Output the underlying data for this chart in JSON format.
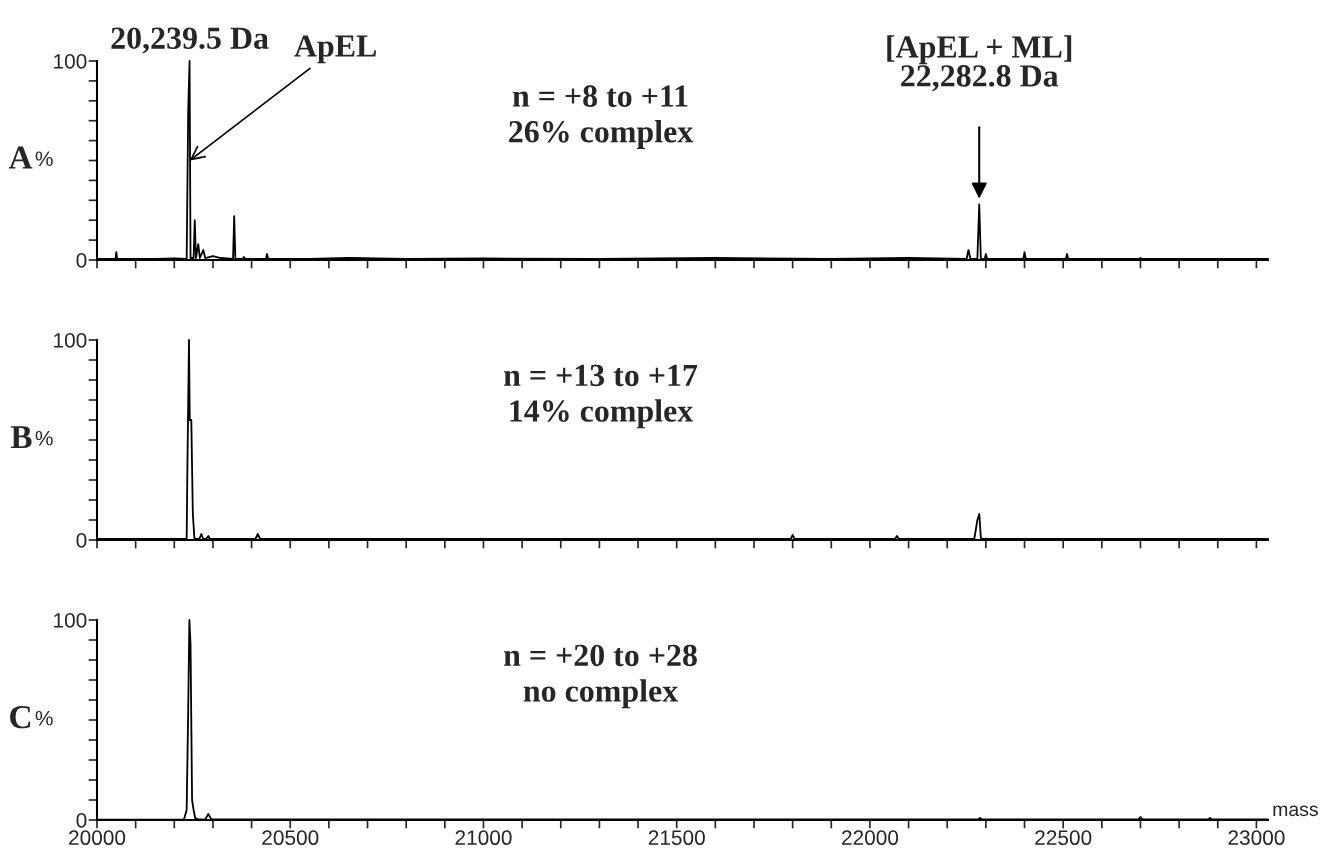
{
  "chart_data": [
    {
      "type": "line",
      "title": "A",
      "ylabel": "%",
      "xlim": [
        20000,
        23030
      ],
      "ylim": [
        0,
        100
      ],
      "tick_labels": "y",
      "legend": false,
      "grid": false,
      "xticks": [
        20000,
        {
          "value": 20100,
          "label": null
        },
        {
          "value": 20200,
          "label": null
        },
        {
          "value": 20300,
          "label": null
        },
        {
          "value": 20400,
          "label": null
        },
        20500,
        {
          "value": 20600,
          "label": null
        },
        {
          "value": 20700,
          "label": null
        },
        {
          "value": 20800,
          "label": null
        },
        {
          "value": 20900,
          "label": null
        },
        21000,
        {
          "value": 21100,
          "label": null
        },
        {
          "value": 21200,
          "label": null
        },
        {
          "value": 21300,
          "label": null
        },
        {
          "value": 21400,
          "label": null
        },
        21500,
        {
          "value": 21600,
          "label": null
        },
        {
          "value": 21700,
          "label": null
        },
        {
          "value": 21800,
          "label": null
        },
        {
          "value": 21900,
          "label": null
        },
        22000,
        {
          "value": 22100,
          "label": null
        },
        {
          "value": 22200,
          "label": null
        },
        {
          "value": 22300,
          "label": null
        },
        {
          "value": 22400,
          "label": null
        },
        22500,
        {
          "value": 22600,
          "label": null
        },
        {
          "value": 22700,
          "label": null
        },
        {
          "value": 22800,
          "label": null
        },
        {
          "value": 22900,
          "label": null
        },
        23000
      ],
      "yticks": [
        0,
        {
          "value": 10,
          "label": null
        },
        {
          "value": 20,
          "label": null
        },
        {
          "value": 30,
          "label": null
        },
        {
          "value": 40,
          "label": null
        },
        {
          "value": 50,
          "label": null
        },
        {
          "value": 60,
          "label": null
        },
        {
          "value": 70,
          "label": null
        },
        {
          "value": 80,
          "label": null
        },
        {
          "value": 90,
          "label": null
        },
        100
      ],
      "series": [
        {
          "color": "#000000",
          "x": [
            20000,
            20048,
            20050,
            20052,
            20150,
            20200,
            20232,
            20236,
            20239.5,
            20242,
            20250,
            20253,
            20256,
            20262,
            20266,
            20275,
            20280,
            20300,
            20320,
            20352,
            20355,
            20358,
            20376,
            20380,
            20384,
            20437,
            20440,
            20443,
            20550,
            20650,
            20800,
            21000,
            21300,
            21600,
            21900,
            22100,
            22250,
            22255,
            22260,
            22278,
            22282.8,
            22287,
            22297,
            22300,
            22303,
            22397,
            22400,
            22403,
            22507,
            22510,
            22513,
            22697,
            22700,
            22703,
            23000,
            23030
          ],
          "values": [
            0.5,
            0.5,
            4,
            0.5,
            0.5,
            0.8,
            0.5,
            75,
            100,
            1,
            1,
            20,
            1,
            8,
            1,
            5,
            1,
            2,
            1,
            0.5,
            22,
            0.5,
            0.5,
            1.5,
            0.5,
            0.5,
            3,
            0.5,
            0.5,
            1,
            0.5,
            0.8,
            0.5,
            1,
            0.5,
            1,
            0.5,
            5,
            0.5,
            0.5,
            28,
            0.5,
            0.5,
            3,
            0.5,
            0.5,
            4,
            0.5,
            0.5,
            3,
            0.5,
            0.5,
            1,
            0.5,
            0.5,
            0.5
          ]
        }
      ],
      "annotations": [
        "n = +8 to +11\n26% complex",
        {
          "text": "20,239.5 Da",
          "x": 20239.5,
          "y": 100
        },
        {
          "text": "ApEL",
          "x": 20240,
          "y": 50
        },
        {
          "text": "[ApEL + ML]\n22,282.8 Da",
          "x": 22282.8,
          "y": 28
        }
      ]
    },
    {
      "type": "line",
      "title": "B",
      "ylabel": "%",
      "xlim": [
        20000,
        23030
      ],
      "ylim": [
        0,
        100
      ],
      "tick_labels": "y",
      "legend": false,
      "grid": false,
      "xticks": [
        20000,
        {
          "value": 20100,
          "label": null
        },
        {
          "value": 20200,
          "label": null
        },
        {
          "value": 20300,
          "label": null
        },
        {
          "value": 20400,
          "label": null
        },
        20500,
        {
          "value": 20600,
          "label": null
        },
        {
          "value": 20700,
          "label": null
        },
        {
          "value": 20800,
          "label": null
        },
        {
          "value": 20900,
          "label": null
        },
        21000,
        {
          "value": 21100,
          "label": null
        },
        {
          "value": 21200,
          "label": null
        },
        {
          "value": 21300,
          "label": null
        },
        {
          "value": 21400,
          "label": null
        },
        21500,
        {
          "value": 21600,
          "label": null
        },
        {
          "value": 21700,
          "label": null
        },
        {
          "value": 21800,
          "label": null
        },
        {
          "value": 21900,
          "label": null
        },
        22000,
        {
          "value": 22100,
          "label": null
        },
        {
          "value": 22200,
          "label": null
        },
        {
          "value": 22300,
          "label": null
        },
        {
          "value": 22400,
          "label": null
        },
        22500,
        {
          "value": 22600,
          "label": null
        },
        {
          "value": 22700,
          "label": null
        },
        {
          "value": 22800,
          "label": null
        },
        {
          "value": 22900,
          "label": null
        },
        23000
      ],
      "yticks": [
        0,
        {
          "value": 10,
          "label": null
        },
        {
          "value": 20,
          "label": null
        },
        {
          "value": 30,
          "label": null
        },
        {
          "value": 40,
          "label": null
        },
        {
          "value": 50,
          "label": null
        },
        {
          "value": 60,
          "label": null
        },
        {
          "value": 70,
          "label": null
        },
        {
          "value": 80,
          "label": null
        },
        {
          "value": 90,
          "label": null
        },
        100
      ],
      "series": [
        {
          "color": "#000000",
          "x": [
            20000,
            20220,
            20232,
            20234,
            20238,
            20240,
            20244,
            20248,
            20252,
            20256,
            20265,
            20270,
            20275,
            20282,
            20288,
            20292,
            20410,
            20416,
            20422,
            20800,
            21200,
            21795,
            21800,
            21805,
            22065,
            22070,
            22075,
            22270,
            22278,
            22283,
            22287,
            22292,
            22600,
            23030
          ],
          "values": [
            0.5,
            0.5,
            0.5,
            38,
            100,
            60,
            60,
            13,
            1,
            0.5,
            0.5,
            3,
            0.5,
            0.5,
            2,
            0.5,
            0.5,
            3,
            0.5,
            0.5,
            0.5,
            0.5,
            2.5,
            0.5,
            0.5,
            2,
            0.5,
            0.5,
            10,
            13,
            1,
            0.5,
            0.5,
            0.5
          ]
        }
      ],
      "annotations": [
        "n = +13 to +17\n14% complex"
      ]
    },
    {
      "type": "line",
      "title": "C",
      "ylabel": "%",
      "xlabel": "mass",
      "xlim": [
        20000,
        23030
      ],
      "ylim": [
        0,
        100
      ],
      "legend": false,
      "grid": false,
      "xticks": [
        20000,
        {
          "value": 20100,
          "label": null
        },
        {
          "value": 20200,
          "label": null
        },
        {
          "value": 20300,
          "label": null
        },
        {
          "value": 20400,
          "label": null
        },
        20500,
        {
          "value": 20600,
          "label": null
        },
        {
          "value": 20700,
          "label": null
        },
        {
          "value": 20800,
          "label": null
        },
        {
          "value": 20900,
          "label": null
        },
        21000,
        {
          "value": 21100,
          "label": null
        },
        {
          "value": 21200,
          "label": null
        },
        {
          "value": 21300,
          "label": null
        },
        {
          "value": 21400,
          "label": null
        },
        21500,
        {
          "value": 21600,
          "label": null
        },
        {
          "value": 21700,
          "label": null
        },
        {
          "value": 21800,
          "label": null
        },
        {
          "value": 21900,
          "label": null
        },
        22000,
        {
          "value": 22100,
          "label": null
        },
        {
          "value": 22200,
          "label": null
        },
        {
          "value": 22300,
          "label": null
        },
        {
          "value": 22400,
          "label": null
        },
        22500,
        {
          "value": 22600,
          "label": null
        },
        {
          "value": 22700,
          "label": null
        },
        {
          "value": 22800,
          "label": null
        },
        {
          "value": 22900,
          "label": null
        },
        23000
      ],
      "yticks": [
        0,
        {
          "value": 10,
          "label": null
        },
        {
          "value": 20,
          "label": null
        },
        {
          "value": 30,
          "label": null
        },
        {
          "value": 40,
          "label": null
        },
        {
          "value": 50,
          "label": null
        },
        {
          "value": 60,
          "label": null
        },
        {
          "value": 70,
          "label": null
        },
        {
          "value": 80,
          "label": null
        },
        {
          "value": 90,
          "label": null
        },
        100
      ],
      "series": [
        {
          "color": "#000000",
          "x": [
            20000,
            20225,
            20232,
            20236,
            20239,
            20242,
            20246,
            20250,
            20254,
            20262,
            20280,
            20288,
            20296,
            20300,
            21500,
            22280,
            22285,
            22290,
            22695,
            22700,
            22705,
            22875,
            22880,
            22885,
            23030
          ],
          "values": [
            0.2,
            0.2,
            5,
            55,
            100,
            88,
            10,
            5,
            1,
            0.3,
            0.3,
            3,
            0.3,
            0.3,
            0.3,
            0.3,
            1,
            0.3,
            0.3,
            1.5,
            0.3,
            0.3,
            1,
            0.3,
            0.3
          ]
        }
      ],
      "annotations": [
        "n = +20 to +28\nno complex"
      ]
    }
  ]
}
